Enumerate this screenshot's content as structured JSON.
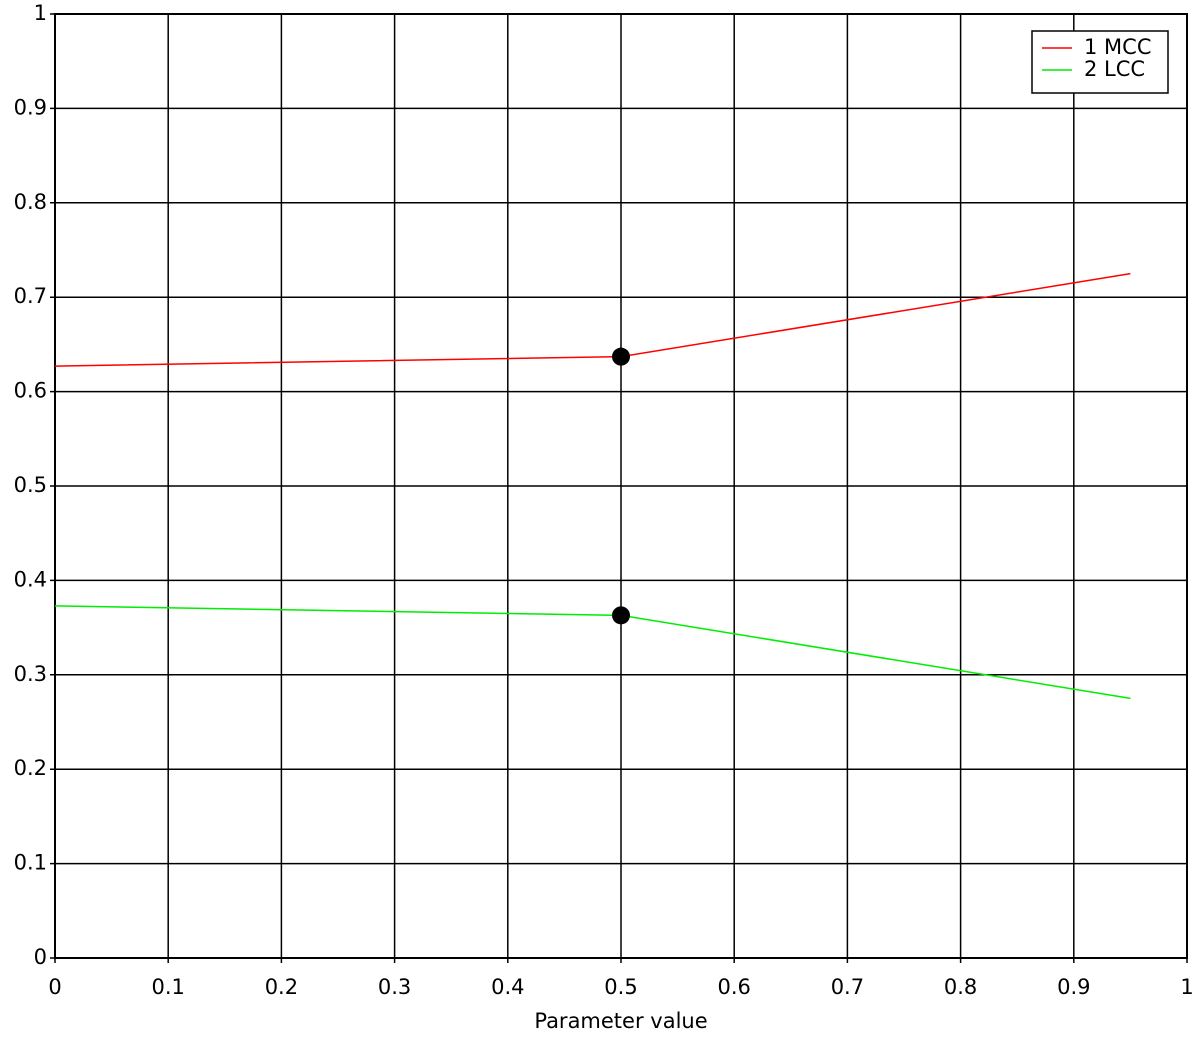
{
  "chart_data": {
    "type": "line",
    "x_label": "Parameter value",
    "x": [
      0,
      0.5,
      0.95
    ],
    "series": [
      {
        "name": "1 MCC",
        "color": "#ff0000",
        "values": [
          0.627,
          0.637,
          0.725
        ]
      },
      {
        "name": "2 LCC",
        "color": "#00ee00",
        "values": [
          0.373,
          0.363,
          0.275
        ]
      }
    ],
    "marker_x": 0.5,
    "xlim": [
      0,
      1
    ],
    "xticks": [
      0,
      0.1,
      0.2,
      0.3,
      0.4,
      0.5,
      0.6,
      0.7,
      0.8,
      0.9,
      1
    ],
    "ylim": [
      0,
      1
    ],
    "yticks": [
      0,
      0.1,
      0.2,
      0.3,
      0.4,
      0.5,
      0.6,
      0.7,
      0.8,
      0.9,
      1
    ],
    "grid": true,
    "legend": "upper right"
  }
}
